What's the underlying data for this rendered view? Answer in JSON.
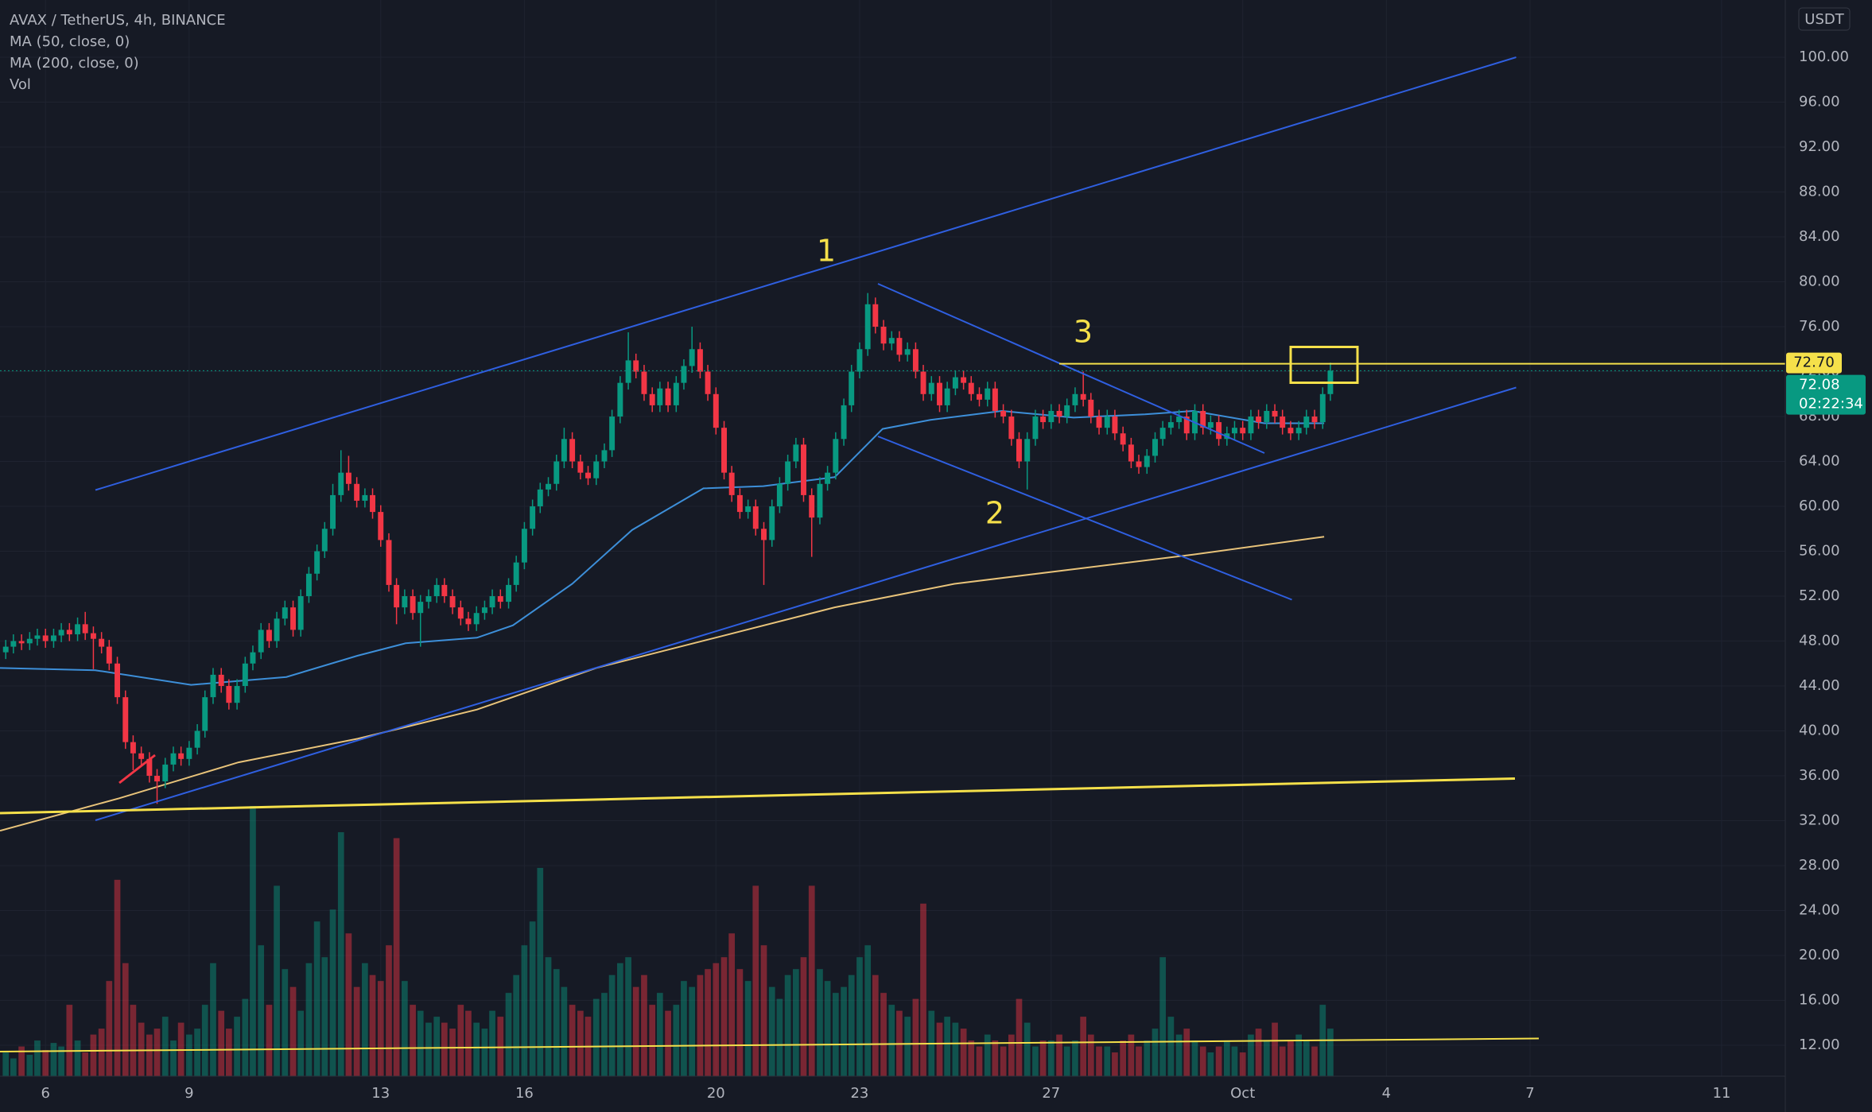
{
  "chart_data": {
    "type": "candlestick",
    "title": "AVAX / TetherUS, 4h, BINANCE",
    "indicator_labels": [
      "MA (50, close, 0)",
      "MA (200, close, 0)",
      "Vol"
    ],
    "currency": "USDT",
    "up_color": "#089981",
    "down_color": "#f23645",
    "x": [
      5.17,
      5.33,
      5.5,
      5.67,
      5.83,
      6,
      6.17,
      6.33,
      6.5,
      6.67,
      6.83,
      7,
      7.17,
      7.33,
      7.5,
      7.67,
      7.83,
      8,
      8.17,
      8.33,
      8.5,
      8.67,
      8.83,
      9,
      9.17,
      9.33,
      9.5,
      9.67,
      9.83,
      10,
      10.17,
      10.33,
      10.5,
      10.67,
      10.83,
      11,
      11.17,
      11.33,
      11.5,
      11.67,
      11.83,
      12,
      12.17,
      12.33,
      12.5,
      12.67,
      12.83,
      13,
      13.17,
      13.33,
      13.5,
      13.67,
      13.83,
      14,
      14.17,
      14.33,
      14.5,
      14.67,
      14.83,
      15,
      15.17,
      15.33,
      15.5,
      15.67,
      15.83,
      16,
      16.17,
      16.33,
      16.5,
      16.67,
      16.83,
      17,
      17.17,
      17.33,
      17.5,
      17.67,
      17.83,
      18,
      18.17,
      18.33,
      18.5,
      18.67,
      18.83,
      19,
      19.17,
      19.33,
      19.5,
      19.67,
      19.83,
      20,
      20.17,
      20.33,
      20.5,
      20.67,
      20.83,
      21,
      21.17,
      21.33,
      21.5,
      21.67,
      21.83,
      22,
      22.17,
      22.33,
      22.5,
      22.67,
      22.83,
      23,
      23.17,
      23.33,
      23.5,
      23.67,
      23.83,
      24,
      24.17,
      24.33,
      24.5,
      24.67,
      24.83,
      25,
      25.17,
      25.33,
      25.5,
      25.67,
      25.83,
      26,
      26.17,
      26.33,
      26.5,
      26.67,
      26.83,
      27,
      27.17,
      27.33,
      27.5,
      27.67,
      27.83,
      28,
      28.17,
      28.33,
      28.5,
      28.67,
      28.83,
      29,
      29.17,
      29.33,
      29.5,
      29.67,
      29.83,
      30,
      30.17,
      30.33,
      30.5,
      30.67,
      30.83,
      31,
      31.17,
      31.33,
      31.5,
      31.67,
      31.83,
      32,
      32.17,
      32.33,
      32.5,
      32.67,
      32.83
    ],
    "open": [
      47,
      47.5,
      48,
      47.8,
      48.2,
      48.5,
      48,
      48.5,
      49,
      48.6,
      49.5,
      48.7,
      48.2,
      47.5,
      46,
      43,
      39,
      38,
      37.5,
      36,
      35.5,
      37,
      38,
      37.5,
      38.5,
      40,
      43,
      45,
      44,
      42.5,
      44,
      46,
      47,
      49,
      48,
      50,
      51,
      49,
      52,
      54,
      56,
      58,
      61,
      63,
      62,
      60.5,
      61,
      59.5,
      57,
      53,
      51,
      52,
      50.5,
      51.5,
      52,
      53,
      52,
      51,
      50,
      49.5,
      50.5,
      51,
      52,
      51.5,
      53,
      55,
      58,
      60,
      61.5,
      62,
      64,
      66,
      64,
      63,
      62.5,
      64,
      65,
      68,
      71,
      73,
      72,
      70,
      69,
      70.5,
      69,
      71,
      72.5,
      74,
      72,
      70,
      67,
      63,
      61,
      59.5,
      60,
      58,
      57,
      60,
      62,
      64,
      65.5,
      61,
      59,
      62,
      63,
      66,
      69,
      72,
      74,
      78,
      76,
      74.5,
      75,
      73.5,
      74,
      72,
      70,
      71,
      69,
      70.5,
      71.5,
      71,
      70,
      69.5,
      70.5,
      68.5,
      68,
      66,
      64,
      66,
      68,
      67.5,
      68.5,
      68,
      69,
      70,
      69.5,
      68,
      67,
      68,
      66.5,
      65.5,
      64,
      63.5,
      64.5,
      66,
      67,
      67.5,
      68,
      66.5,
      68.5,
      67,
      67.5,
      66,
      66.5,
      67,
      66.5,
      68,
      67.5,
      68.5,
      68,
      67,
      66.5,
      67,
      68,
      67.5,
      70
    ],
    "high": [
      48.1,
      48.6,
      48.6,
      48.8,
      49.1,
      49.1,
      49.1,
      49.6,
      49.6,
      50.1,
      50.6,
      49.3,
      48.8,
      48.1,
      46.6,
      43.6,
      39.6,
      38.6,
      38.1,
      36.6,
      37.6,
      38.6,
      38.6,
      39.1,
      40.6,
      43.6,
      45.6,
      45.6,
      44.6,
      44.6,
      46.6,
      47.6,
      49.6,
      49.6,
      50.6,
      51.6,
      51.6,
      52.6,
      54.6,
      56.6,
      58.6,
      62,
      65,
      64.5,
      62.6,
      61.6,
      61.6,
      60.1,
      57.6,
      53.6,
      52.6,
      52.6,
      52.1,
      52.6,
      53.6,
      53.6,
      52.6,
      51.6,
      50.6,
      51.1,
      51.6,
      52.6,
      52.6,
      53.6,
      55.6,
      58.6,
      60.6,
      62.1,
      62.6,
      64.6,
      67,
      66.6,
      64.6,
      63.6,
      64.6,
      65.6,
      68.6,
      71.6,
      75.5,
      73.6,
      72.6,
      70.6,
      71.1,
      71.1,
      71.6,
      73.1,
      76,
      74.6,
      72.6,
      70.6,
      67.6,
      63.6,
      61.6,
      60.6,
      60.6,
      58.6,
      60.6,
      62.6,
      64.6,
      66.1,
      66.1,
      61.6,
      62.6,
      63.6,
      66.6,
      69.6,
      72.6,
      74.6,
      79,
      78.6,
      76.6,
      75.6,
      75.6,
      74.6,
      74.6,
      72.6,
      71.6,
      71.6,
      71.1,
      72.1,
      72.1,
      71.6,
      70.6,
      71.1,
      71.1,
      69.1,
      68.6,
      66.6,
      66.6,
      68.6,
      68.6,
      69.1,
      69.1,
      69.6,
      70.6,
      72,
      70.1,
      68.6,
      68.6,
      68.6,
      67.1,
      66.1,
      64.6,
      65.1,
      66.6,
      67.6,
      68.1,
      68.6,
      68.6,
      69.1,
      69.1,
      68.1,
      68.1,
      67.1,
      67.6,
      67.6,
      68.6,
      68.6,
      69.1,
      69.1,
      68.6,
      67.6,
      67.6,
      68.6,
      68.6,
      70.6,
      72.8
    ],
    "low": [
      46.4,
      46.9,
      47.2,
      47.2,
      47.6,
      47.4,
      47.4,
      47.9,
      48,
      48,
      48.1,
      45.5,
      46.9,
      45.4,
      42.4,
      38.4,
      36.5,
      36.9,
      35.4,
      33.5,
      34.9,
      36.4,
      36.9,
      36.9,
      37.9,
      39.4,
      42.4,
      43.4,
      41.9,
      41.9,
      43.4,
      45.4,
      46.4,
      47.4,
      47.4,
      49.4,
      48.4,
      48.4,
      51.4,
      53.4,
      55.4,
      57.4,
      60.4,
      61.4,
      59.9,
      59.9,
      58.9,
      56.4,
      52.4,
      49.5,
      50.4,
      49.9,
      47.5,
      50.9,
      51.4,
      51.4,
      50.4,
      49.4,
      48.9,
      48.9,
      49.9,
      50.4,
      50.9,
      50.9,
      52.4,
      54.4,
      57.4,
      59.4,
      60.9,
      61.4,
      63.4,
      63.4,
      62.4,
      61.9,
      61.9,
      63.4,
      64.4,
      67.4,
      70.4,
      71.4,
      69.4,
      68.4,
      68.4,
      68.4,
      68.4,
      70.4,
      71.9,
      71.4,
      69.4,
      66.4,
      62.4,
      60.4,
      58.9,
      58.9,
      57.4,
      53,
      56.4,
      59.4,
      61.4,
      63.4,
      60.4,
      55.5,
      58.4,
      61.4,
      62.4,
      65.4,
      68.4,
      71.4,
      73.4,
      75.4,
      73.9,
      73.9,
      72.9,
      72.9,
      71.4,
      69.4,
      69.4,
      68.4,
      68.4,
      69.9,
      70.4,
      69.4,
      68.9,
      68.9,
      67.9,
      67.4,
      65.4,
      63.4,
      61.5,
      65.4,
      66.9,
      66.9,
      67.4,
      67.4,
      68.4,
      68.9,
      67.4,
      66.4,
      66.4,
      65.9,
      64.9,
      63.4,
      62.9,
      62.9,
      63.9,
      65.4,
      66.4,
      66.9,
      65.9,
      65.9,
      66.4,
      66.4,
      65.4,
      65.4,
      65.9,
      65.9,
      65.9,
      66.9,
      66.9,
      67.4,
      66.4,
      65.9,
      65.9,
      66.4,
      66.9,
      66.9,
      69.4
    ],
    "close": [
      47.5,
      48,
      47.8,
      48.2,
      48.5,
      48,
      48.5,
      49,
      48.6,
      49.5,
      48.7,
      48.2,
      47.5,
      46,
      43,
      39,
      38,
      37.5,
      36,
      35.5,
      37,
      38,
      37.5,
      38.5,
      40,
      43,
      45,
      44,
      42.5,
      44,
      46,
      47,
      49,
      48,
      50,
      51,
      49,
      52,
      54,
      56,
      58,
      61,
      63,
      62,
      60.5,
      61,
      59.5,
      57,
      53,
      51,
      52,
      50.5,
      51.5,
      52,
      53,
      52,
      51,
      50,
      49.5,
      50.5,
      51,
      52,
      51.5,
      53,
      55,
      58,
      60,
      61.5,
      62,
      64,
      66,
      64,
      63,
      62.5,
      64,
      65,
      68,
      71,
      73,
      72,
      70,
      69,
      70.5,
      69,
      71,
      72.5,
      74,
      72,
      70,
      67,
      63,
      61,
      59.5,
      60,
      58,
      57,
      60,
      62,
      64,
      65.5,
      61,
      59,
      62,
      63,
      66,
      69,
      72,
      74,
      78,
      76,
      74.5,
      75,
      73.5,
      74,
      72,
      70,
      71,
      69,
      70.5,
      71.5,
      71,
      70,
      69.5,
      70.5,
      68.5,
      68,
      66,
      64,
      66,
      68,
      67.5,
      68.5,
      68,
      69,
      70,
      69.5,
      68,
      67,
      68,
      66.5,
      65.5,
      64,
      63.5,
      64.5,
      66,
      67,
      67.5,
      68,
      66.5,
      68.5,
      67,
      67.5,
      66,
      66.5,
      67,
      66.5,
      68,
      67.5,
      68.5,
      68,
      67,
      66.5,
      67,
      68,
      67.5,
      70,
      72.08
    ],
    "volume": [
      20,
      15,
      25,
      18,
      30,
      22,
      28,
      25,
      60,
      30,
      20,
      35,
      40,
      80,
      165,
      95,
      60,
      45,
      35,
      40,
      50,
      30,
      45,
      35,
      40,
      60,
      95,
      55,
      40,
      50,
      65,
      227,
      110,
      60,
      160,
      90,
      75,
      55,
      95,
      130,
      100,
      140,
      205,
      120,
      75,
      95,
      85,
      80,
      110,
      200,
      80,
      60,
      55,
      45,
      50,
      45,
      40,
      60,
      55,
      45,
      40,
      55,
      50,
      70,
      85,
      110,
      130,
      175,
      100,
      90,
      75,
      60,
      55,
      50,
      65,
      70,
      85,
      95,
      100,
      75,
      85,
      60,
      70,
      55,
      60,
      80,
      75,
      85,
      90,
      95,
      100,
      120,
      90,
      80,
      160,
      110,
      75,
      65,
      85,
      90,
      100,
      160,
      90,
      80,
      70,
      75,
      85,
      100,
      110,
      85,
      70,
      60,
      55,
      50,
      65,
      145,
      55,
      45,
      50,
      45,
      40,
      30,
      25,
      35,
      30,
      25,
      35,
      65,
      45,
      25,
      30,
      30,
      35,
      25,
      30,
      50,
      35,
      25,
      25,
      20,
      30,
      35,
      25,
      30,
      40,
      100,
      50,
      35,
      40,
      30,
      25,
      20,
      25,
      30,
      25,
      20,
      35,
      40,
      30,
      45,
      25,
      30,
      35,
      30,
      25,
      60,
      40
    ],
    "lines": [
      {
        "name": "MA (50, close, 0)",
        "color": "#3d8fd9",
        "x": [
          5.05,
          7.04,
          9.04,
          11.03,
          12.52,
          13.52,
          15.01,
          15.76,
          17.0,
          18.25,
          19.74,
          20.99,
          22.48,
          23.48,
          24.48,
          25.97,
          27.47,
          28.96,
          29.96,
          31.45,
          32.7
        ],
        "values": [
          45.6,
          45.4,
          44.1,
          44.8,
          46.7,
          47.8,
          48.3,
          49.4,
          53.1,
          57.9,
          61.6,
          61.8,
          62.6,
          66.9,
          67.7,
          68.5,
          67.9,
          68.2,
          68.5,
          67.4,
          67.4
        ]
      },
      {
        "name": "MA (200, close, 0)",
        "color": "#e8c37a",
        "x": [
          5.05,
          7.54,
          10.03,
          12.52,
          15.01,
          17.5,
          19.99,
          22.48,
          24.98,
          27.47,
          29.96,
          32.7
        ],
        "values": [
          31.1,
          34.0,
          37.2,
          39.3,
          41.9,
          45.6,
          48.3,
          51.0,
          53.1,
          54.4,
          55.7,
          57.3
        ]
      }
    ],
    "xlim": [
      5.05,
      42.33
    ],
    "xticks": [
      6,
      9,
      13,
      16,
      20,
      23,
      27,
      {
        "value": 31,
        "label": "Oct"
      },
      {
        "value": 34,
        "label": "4"
      },
      {
        "value": 37,
        "label": "7"
      },
      {
        "value": 41,
        "label": "11"
      }
    ],
    "ylim": [
      9.24,
      105.1
    ],
    "yticks": [
      {
        "value": 12,
        "label": "12.00"
      },
      {
        "value": 16,
        "label": "16.00"
      },
      {
        "value": 20,
        "label": "20.00"
      },
      {
        "value": 24,
        "label": "24.00"
      },
      {
        "value": 28,
        "label": "28.00"
      },
      {
        "value": 32,
        "label": "32.00"
      },
      {
        "value": 36,
        "label": "36.00"
      },
      {
        "value": 40,
        "label": "40.00"
      },
      {
        "value": 44,
        "label": "44.00"
      },
      {
        "value": 48,
        "label": "48.00"
      },
      {
        "value": 52,
        "label": "52.00"
      },
      {
        "value": 56,
        "label": "56.00"
      },
      {
        "value": 60,
        "label": "60.00"
      },
      {
        "value": 64,
        "label": "64.00"
      },
      {
        "value": 68,
        "label": "68.00"
      },
      {
        "value": 72,
        "label": "72.00"
      },
      {
        "value": 76,
        "label": "76.00"
      },
      {
        "value": 80,
        "label": "80.00"
      },
      {
        "value": 84,
        "label": "84.00"
      },
      {
        "value": 88,
        "label": "88.00"
      },
      {
        "value": 92,
        "label": "92.00"
      },
      {
        "value": 96,
        "label": "96.00"
      },
      {
        "value": 100,
        "label": "100.00"
      }
    ],
    "grid": true,
    "level": {
      "value": 72.7,
      "label": "72.70"
    },
    "last_price": 72.08,
    "countdown": "02:22:34",
    "annotations": [
      "1",
      "2",
      "3"
    ]
  }
}
